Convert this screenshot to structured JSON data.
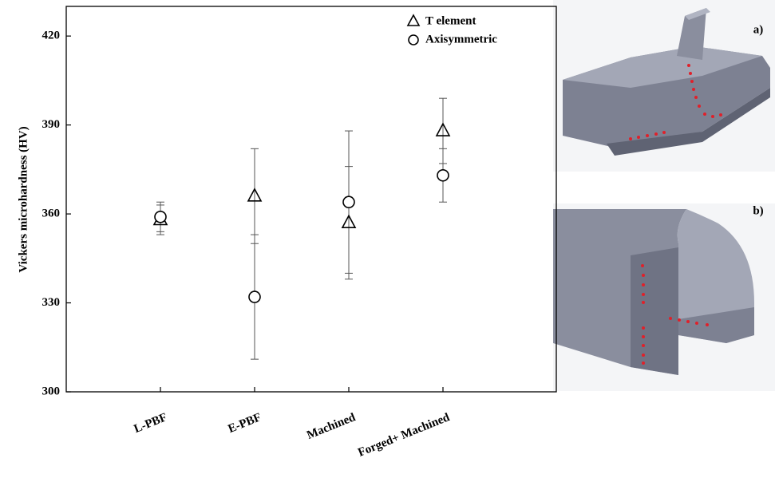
{
  "chart_data": {
    "type": "errorbar",
    "y_label": "Vickers microhardness (HV)",
    "categories": [
      "L-PBF",
      "E-PBF",
      "Machined",
      "Forged+ Machined"
    ],
    "series": [
      {
        "name": "T element",
        "marker": "triangle",
        "color": "#000000",
        "values": [
          358,
          366,
          357,
          388
        ],
        "errors": [
          5,
          16,
          19,
          11
        ]
      },
      {
        "name": "Axisymmetric",
        "marker": "circle",
        "color": "#000000",
        "values": [
          359,
          332,
          364,
          373
        ],
        "errors": [
          5,
          21,
          24,
          9
        ]
      }
    ],
    "ylim": [
      300,
      430
    ],
    "yticks": [
      300,
      330,
      360,
      390,
      420
    ],
    "legend": "upper right",
    "grid": false
  },
  "panels": {
    "a": "a)",
    "b": "b)"
  }
}
